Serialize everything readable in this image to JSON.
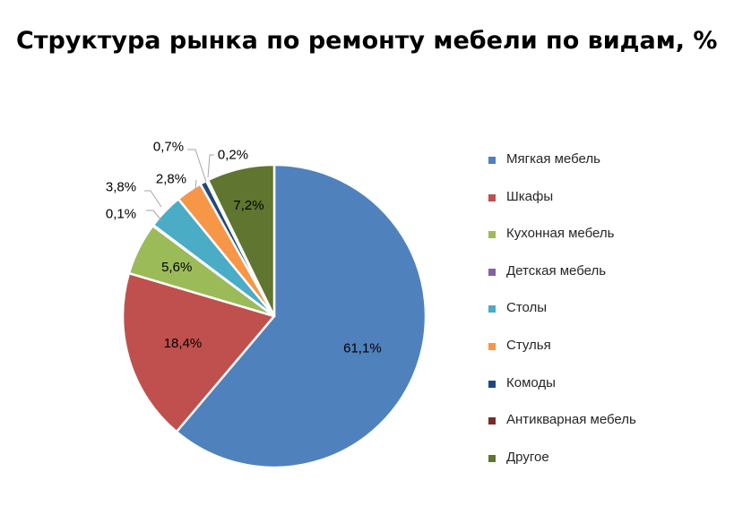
{
  "chart_data": {
    "type": "pie",
    "title": "Структура рынка по ремонту мебели по видам, %",
    "slices": [
      {
        "name": "Мягкая мебель",
        "value": 61.1,
        "label": "61,1%",
        "color": "#4F81BD"
      },
      {
        "name": "Шкафы",
        "value": 18.4,
        "label": "18,4%",
        "color": "#C0504D"
      },
      {
        "name": "Кухонная мебель",
        "value": 5.6,
        "label": "5,6%",
        "color": "#9BBB59"
      },
      {
        "name": "Детская мебель",
        "value": 0.1,
        "label": "0,1%",
        "color": "#8064A2"
      },
      {
        "name": "Столы",
        "value": 3.8,
        "label": "3,8%",
        "color": "#4BACC6"
      },
      {
        "name": "Стулья",
        "value": 2.8,
        "label": "2,8%",
        "color": "#F79646"
      },
      {
        "name": "Комоды",
        "value": 0.7,
        "label": "0,7%",
        "color": "#1F497D"
      },
      {
        "name": "Антикварная мебель",
        "value": 0.2,
        "label": "0,2%",
        "color": "#772C2A"
      },
      {
        "name": "Другое",
        "value": 7.2,
        "label": "7,2%",
        "color": "#5F7530"
      }
    ],
    "legend_position": "right"
  }
}
